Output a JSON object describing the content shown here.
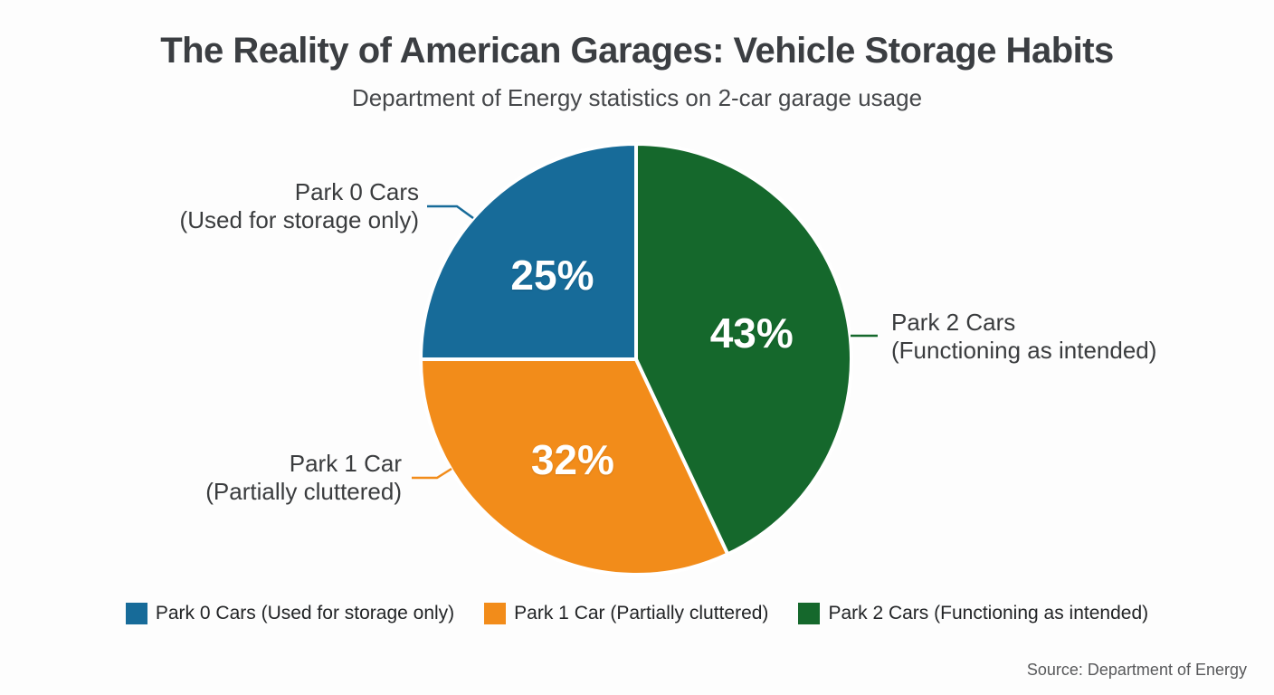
{
  "header": {
    "title": "The Reality of American Garages: Vehicle Storage Habits",
    "subtitle": "Department of Energy statistics on 2-car garage usage"
  },
  "chart_data": {
    "type": "pie",
    "title": "The Reality of American Garages: Vehicle Storage Habits",
    "subtitle": "Department of Energy statistics on 2-car garage usage",
    "unit": "%",
    "start_angle_deg": 90,
    "direction": "counterclockwise",
    "legend_position": "bottom",
    "slices": [
      {
        "label": "Park 0 Cars (Used for storage only)",
        "callout_line1": "Park 0 Cars",
        "callout_line2": "(Used for storage only)",
        "value": 25,
        "display": "25%",
        "color": "#176b99"
      },
      {
        "label": "Park 1 Car (Partially cluttered)",
        "callout_line1": "Park 1 Car",
        "callout_line2": "(Partially cluttered)",
        "value": 32,
        "display": "32%",
        "color": "#f28c1a"
      },
      {
        "label": "Park 2 Cars (Functioning as intended)",
        "callout_line1": "Park 2 Cars",
        "callout_line2": "(Functioning as intended)",
        "value": 43,
        "display": "43%",
        "color": "#15682c"
      }
    ]
  },
  "footer": {
    "source": "Source: Department of Energy"
  }
}
